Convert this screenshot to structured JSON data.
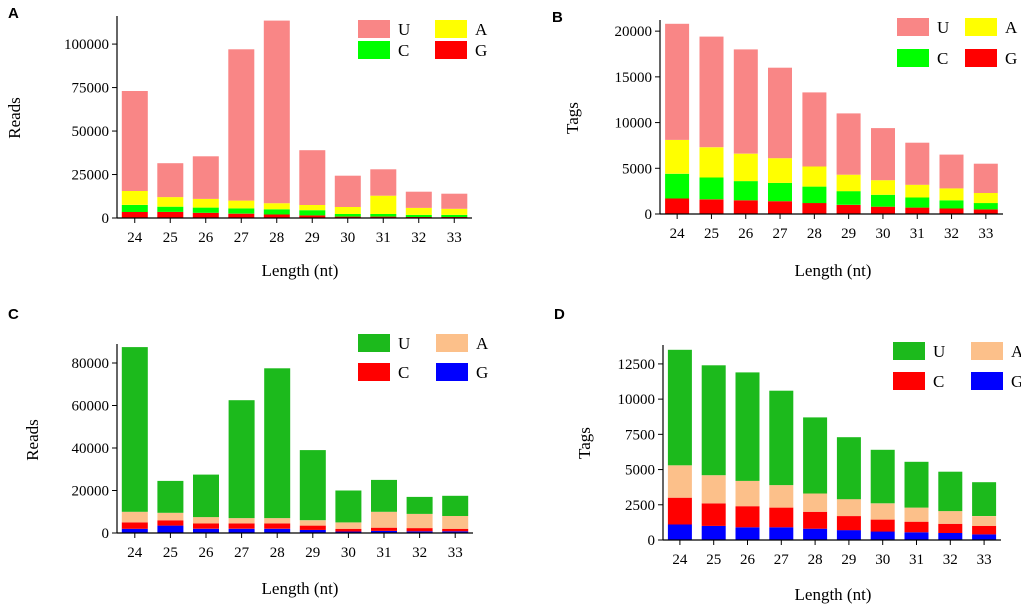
{
  "chart_data": [
    {
      "type": "bar",
      "stacked": true,
      "panel": "A",
      "categories": [
        "24",
        "25",
        "26",
        "27",
        "28",
        "29",
        "30",
        "31",
        "32",
        "33"
      ],
      "xlabel": "Length (nt)",
      "ylabel": "Reads",
      "ylim": [
        0,
        115000
      ],
      "yticks": [
        0,
        25000,
        50000,
        75000,
        100000
      ],
      "ytick_labels": [
        "0",
        "25000",
        "50000",
        "75000",
        "100000"
      ],
      "series": [
        {
          "name": "G",
          "color": "#ff0000",
          "values": [
            3500,
            3500,
            3000,
            2500,
            2000,
            1500,
            800,
            800,
            600,
            600
          ]
        },
        {
          "name": "C",
          "color": "#00ff00",
          "values": [
            4000,
            3000,
            3000,
            3000,
            3000,
            3000,
            1500,
            1500,
            1200,
            1200
          ]
        },
        {
          "name": "A",
          "color": "#ffff00",
          "values": [
            8000,
            5500,
            5000,
            4500,
            3500,
            3000,
            4000,
            10500,
            4000,
            3500
          ]
        },
        {
          "name": "U",
          "color": "#f98686",
          "values": [
            57500,
            19500,
            24500,
            87000,
            105000,
            31500,
            18000,
            15200,
            9300,
            8700
          ]
        }
      ],
      "legend_order": [
        "U",
        "A",
        "C",
        "G"
      ]
    },
    {
      "type": "bar",
      "stacked": true,
      "panel": "B",
      "categories": [
        "24",
        "25",
        "26",
        "27",
        "28",
        "29",
        "30",
        "31",
        "32",
        "33"
      ],
      "xlabel": "Length (nt)",
      "ylabel": "Tags",
      "ylim": [
        0,
        21000
      ],
      "yticks": [
        0,
        5000,
        10000,
        15000,
        20000
      ],
      "ytick_labels": [
        "0",
        "5000",
        "10000",
        "15000",
        "20000"
      ],
      "series": [
        {
          "name": "G",
          "color": "#ff0000",
          "values": [
            1700,
            1600,
            1500,
            1400,
            1200,
            1000,
            800,
            700,
            600,
            500
          ]
        },
        {
          "name": "C",
          "color": "#00ff00",
          "values": [
            2700,
            2400,
            2100,
            2000,
            1800,
            1500,
            1300,
            1100,
            900,
            700
          ]
        },
        {
          "name": "A",
          "color": "#ffff00",
          "values": [
            3700,
            3300,
            3000,
            2700,
            2200,
            1800,
            1600,
            1400,
            1300,
            1100
          ]
        },
        {
          "name": "U",
          "color": "#f98686",
          "values": [
            12700,
            12100,
            11400,
            9900,
            8100,
            6700,
            5700,
            4600,
            3700,
            3200
          ]
        }
      ],
      "legend_order": [
        "U",
        "A",
        "C",
        "G"
      ]
    },
    {
      "type": "bar",
      "stacked": true,
      "panel": "C",
      "categories": [
        "24",
        "25",
        "26",
        "27",
        "28",
        "29",
        "30",
        "31",
        "32",
        "33"
      ],
      "xlabel": "Length (nt)",
      "ylabel": "Reads",
      "ylim": [
        0,
        88000
      ],
      "yticks": [
        0,
        20000,
        40000,
        60000,
        80000
      ],
      "ytick_labels": [
        "0",
        "20000",
        "40000",
        "60000",
        "80000"
      ],
      "series": [
        {
          "name": "G",
          "color": "#0000ff",
          "values": [
            2000,
            3500,
            2000,
            2000,
            2000,
            1500,
            700,
            1000,
            800,
            800
          ]
        },
        {
          "name": "C",
          "color": "#ff0000",
          "values": [
            3000,
            2500,
            2500,
            2500,
            2500,
            2000,
            1300,
            1500,
            1500,
            1200
          ]
        },
        {
          "name": "A",
          "color": "#fcc08a",
          "values": [
            5000,
            3500,
            3000,
            2500,
            2500,
            2500,
            3000,
            7500,
            6700,
            6000
          ]
        },
        {
          "name": "U",
          "color": "#1cba1c",
          "values": [
            77500,
            15000,
            20000,
            55500,
            70500,
            33000,
            15000,
            15000,
            8000,
            9500
          ]
        }
      ],
      "legend_order": [
        "U",
        "A",
        "C",
        "G"
      ]
    },
    {
      "type": "bar",
      "stacked": true,
      "panel": "D",
      "categories": [
        "24",
        "25",
        "26",
        "27",
        "28",
        "29",
        "30",
        "31",
        "32",
        "33"
      ],
      "xlabel": "Length (nt)",
      "ylabel": "Tags",
      "ylim": [
        0,
        13700
      ],
      "yticks": [
        0,
        2500,
        5000,
        7500,
        10000,
        12500
      ],
      "ytick_labels": [
        "0",
        "2500",
        "5000",
        "7500",
        "10000",
        "12500"
      ],
      "series": [
        {
          "name": "G",
          "color": "#0000ff",
          "values": [
            1100,
            1000,
            900,
            900,
            800,
            700,
            600,
            550,
            500,
            400
          ]
        },
        {
          "name": "C",
          "color": "#ff0000",
          "values": [
            1900,
            1600,
            1500,
            1400,
            1200,
            1000,
            850,
            750,
            650,
            600
          ]
        },
        {
          "name": "A",
          "color": "#fcc08a",
          "values": [
            2300,
            2000,
            1800,
            1600,
            1300,
            1200,
            1150,
            1000,
            900,
            700
          ]
        },
        {
          "name": "U",
          "color": "#1cba1c",
          "values": [
            8200,
            7800,
            7700,
            6700,
            5400,
            4400,
            3800,
            3250,
            2800,
            2400
          ]
        }
      ],
      "legend_order": [
        "U",
        "A",
        "C",
        "G"
      ]
    }
  ]
}
